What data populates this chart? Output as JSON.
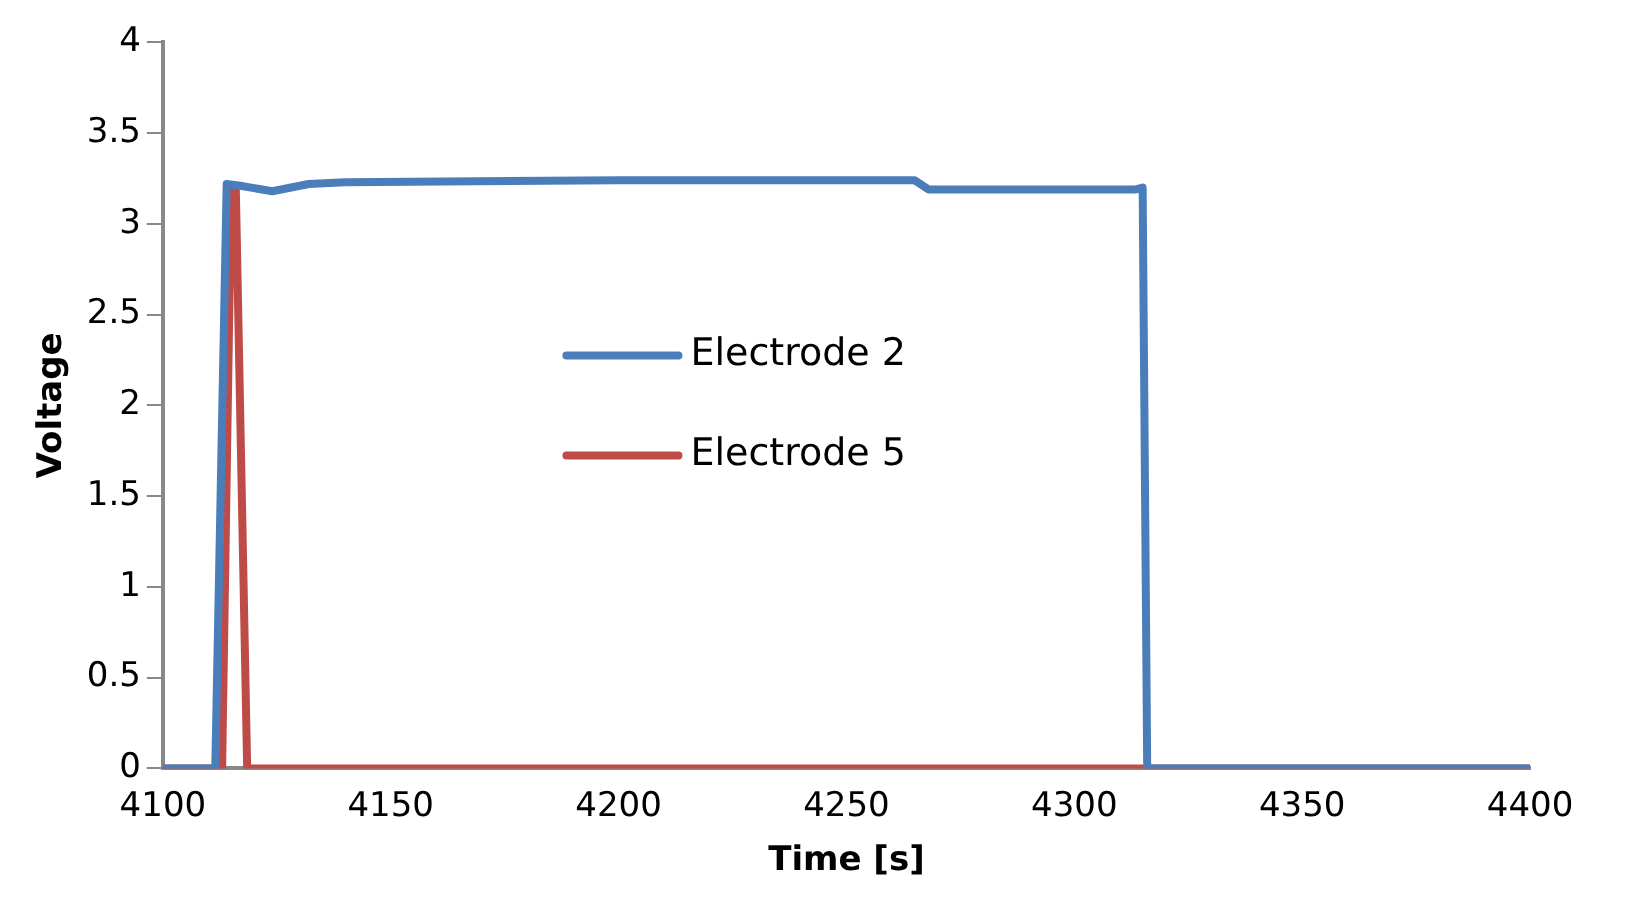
{
  "chart_data": {
    "type": "line",
    "xlabel": "Time [s]",
    "ylabel": "Voltage",
    "xlim": [
      4100,
      4400
    ],
    "xticks": [
      4100,
      4150,
      4200,
      4250,
      4300,
      4350,
      4400
    ],
    "ylim": [
      0,
      4
    ],
    "yticks": [
      0,
      0.5,
      1,
      1.5,
      2,
      2.5,
      3,
      3.5,
      4
    ],
    "grid": false,
    "legend": "center",
    "marker": "none",
    "line_style": "solid",
    "series": [
      {
        "name": "Electrode 2",
        "color": "#4a7ebb",
        "x": [
          4100,
          4111.5,
          4114,
          4117,
          4124,
          4132,
          4140,
          4200,
          4265,
          4268,
          4313.5,
          4315,
          4316,
          4400
        ],
        "values": [
          0,
          0,
          3.22,
          3.21,
          3.18,
          3.22,
          3.23,
          3.24,
          3.24,
          3.19,
          3.19,
          3.2,
          0,
          0
        ]
      },
      {
        "name": "Electrode 5",
        "color": "#be4b48",
        "x": [
          4100,
          4113,
          4115,
          4116,
          4118.5,
          4400
        ],
        "values": [
          0,
          0,
          3.21,
          3.2,
          0,
          0
        ]
      }
    ]
  }
}
